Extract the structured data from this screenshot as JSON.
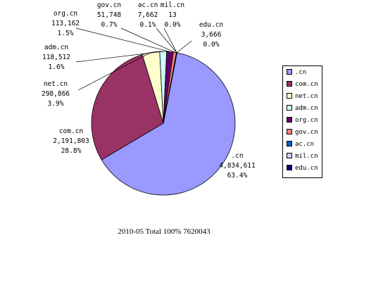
{
  "chart_data": {
    "type": "pie",
    "title": "2010-05 Total  100%  7620043",
    "slices": [
      {
        "name": ".cn",
        "count": "4,834,611",
        "value": 4834611,
        "pct": "63.4%",
        "color": "#9999ff"
      },
      {
        "name": "com.cn",
        "count": "2,191,803",
        "value": 2191803,
        "pct": "28.8%",
        "color": "#993366"
      },
      {
        "name": "net.cn",
        "count": "298,866",
        "value": 298866,
        "pct": "3.9%",
        "color": "#ffffcc"
      },
      {
        "name": "adm.cn",
        "count": "118,512",
        "value": 118512,
        "pct": "1.6%",
        "color": "#ccffff"
      },
      {
        "name": "org.cn",
        "count": "113,162",
        "value": 113162,
        "pct": "1.5%",
        "color": "#660066"
      },
      {
        "name": "gov.cn",
        "count": "51,748",
        "value": 51748,
        "pct": "0.7%",
        "color": "#ff8080"
      },
      {
        "name": "ac.cn",
        "count": "7,662",
        "value": 7662,
        "pct": "0.1%",
        "color": "#0066cc"
      },
      {
        "name": "mil.cn",
        "count": "13",
        "value": 13,
        "pct": "0.0%",
        "color": "#ccccff"
      },
      {
        "name": "edu.cn",
        "count": "3,666",
        "value": 3666,
        "pct": "0.0%",
        "color": "#000080"
      }
    ],
    "legend_position": "right"
  }
}
